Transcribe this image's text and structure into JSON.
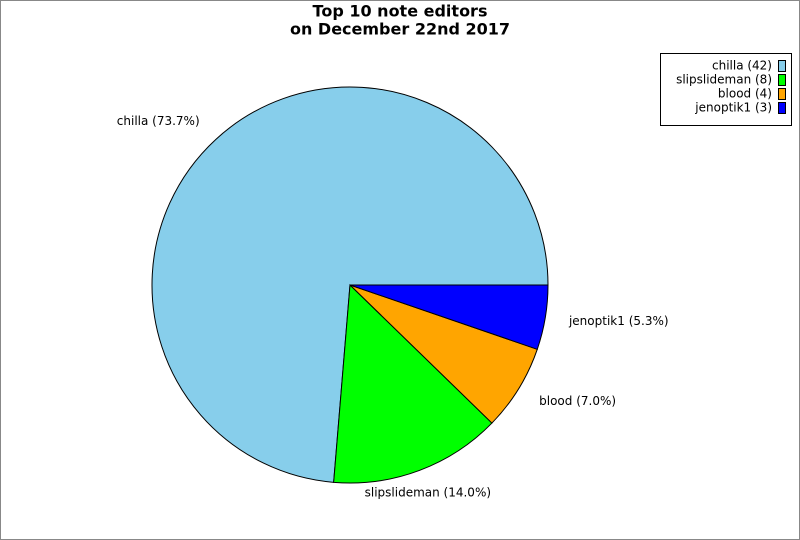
{
  "chart_data": {
    "type": "pie",
    "title": [
      "Top 10 note editors",
      "on December 22nd 2017"
    ],
    "categories": [
      "chilla",
      "slipslideman",
      "blood",
      "jenoptik1"
    ],
    "values": [
      42,
      8,
      4,
      3
    ],
    "colors": [
      "#87ceeb",
      "#00ff00",
      "#ffa500",
      "#0000ff"
    ],
    "slice_labels": [
      "chilla (73.7%)",
      "slipslideman (14.0%)",
      "blood (7.0%)",
      "jenoptik1 (5.3%)"
    ],
    "legend_labels": [
      "chilla (42)",
      "slipslideman (8)",
      "blood (4)",
      "jenoptik1 (3)"
    ],
    "legend": "upper right"
  }
}
